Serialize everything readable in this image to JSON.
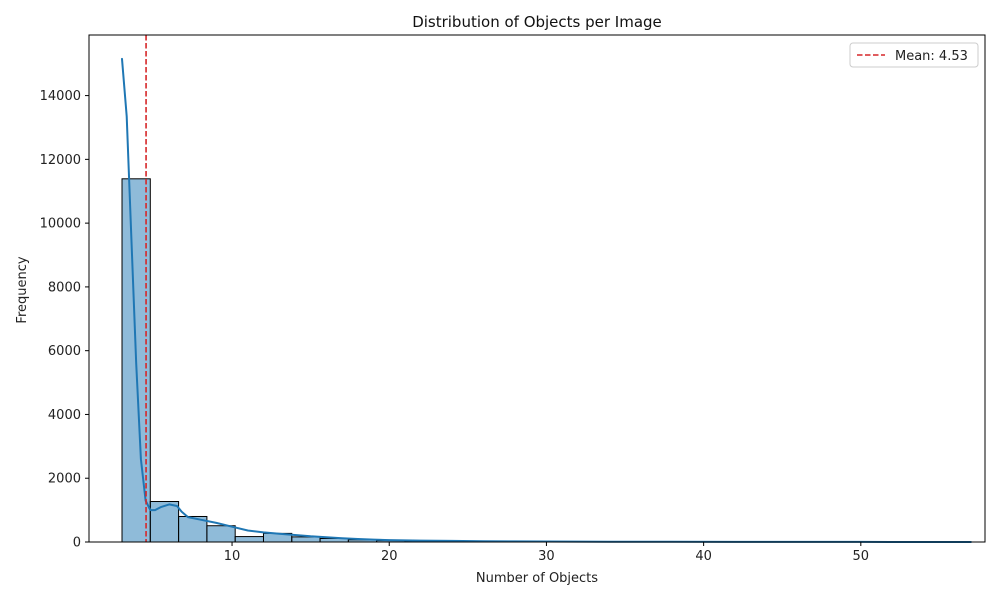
{
  "chart_data": {
    "type": "bar",
    "title": "Distribution of Objects per Image",
    "xlabel": "Number of Objects",
    "ylabel": "Frequency",
    "xlim": [
      0.9,
      57.9
    ],
    "ylim": [
      0,
      15900
    ],
    "xticks": [
      10,
      20,
      30,
      40,
      50
    ],
    "xtick_labels": [
      "10",
      "20",
      "30",
      "40",
      "50"
    ],
    "yticks": [
      0,
      2000,
      4000,
      6000,
      8000,
      10000,
      12000,
      14000
    ],
    "ytick_labels": [
      "0",
      "2000",
      "4000",
      "6000",
      "8000",
      "10000",
      "12000",
      "14000"
    ],
    "grid": false,
    "bins": {
      "edges": [
        3,
        4.8,
        6.6,
        8.4,
        10.2,
        12,
        13.8,
        15.6,
        17.4,
        19.2,
        21,
        22.8,
        24.6,
        26.4,
        28.2,
        30,
        31.8,
        33.6,
        35.4,
        37.2,
        39,
        40.8,
        42.6,
        44.4,
        46.2,
        48,
        49.8,
        51.6,
        53.4,
        55.2,
        57
      ],
      "counts": [
        11390,
        1270,
        800,
        510,
        170,
        270,
        160,
        110,
        70,
        45,
        35,
        25,
        20,
        15,
        12,
        10,
        8,
        6,
        5,
        4,
        3,
        3,
        2,
        2,
        2,
        1,
        1,
        1,
        1,
        1
      ]
    },
    "kde": {
      "x": [
        3,
        3.3,
        3.6,
        3.9,
        4.2,
        4.5,
        4.8,
        5.1,
        5.5,
        6,
        6.5,
        6.8,
        7.2,
        8,
        9,
        10,
        11,
        12,
        13,
        14,
        15,
        16,
        17,
        18,
        19,
        20,
        22,
        24,
        26,
        28,
        30,
        34,
        38,
        42,
        46,
        50,
        54,
        57
      ],
      "y": [
        15150,
        13350,
        9500,
        5600,
        2600,
        1300,
        1000,
        1000,
        1100,
        1180,
        1130,
        950,
        780,
        700,
        600,
        480,
        360,
        300,
        260,
        220,
        180,
        150,
        120,
        95,
        75,
        60,
        45,
        35,
        25,
        20,
        15,
        10,
        6,
        4,
        3,
        2,
        1,
        1
      ]
    },
    "mean_line": {
      "x": 4.53,
      "label": "Mean: 4.53",
      "color": "#d62728"
    },
    "colors": {
      "bar_fill": "#1f77b4",
      "bar_fill_opacity": 0.5,
      "bar_edge": "#000000",
      "kde_line": "#1f77b4"
    },
    "legend": {
      "placement": "top-right",
      "entries": [
        "Mean: 4.53"
      ]
    }
  }
}
